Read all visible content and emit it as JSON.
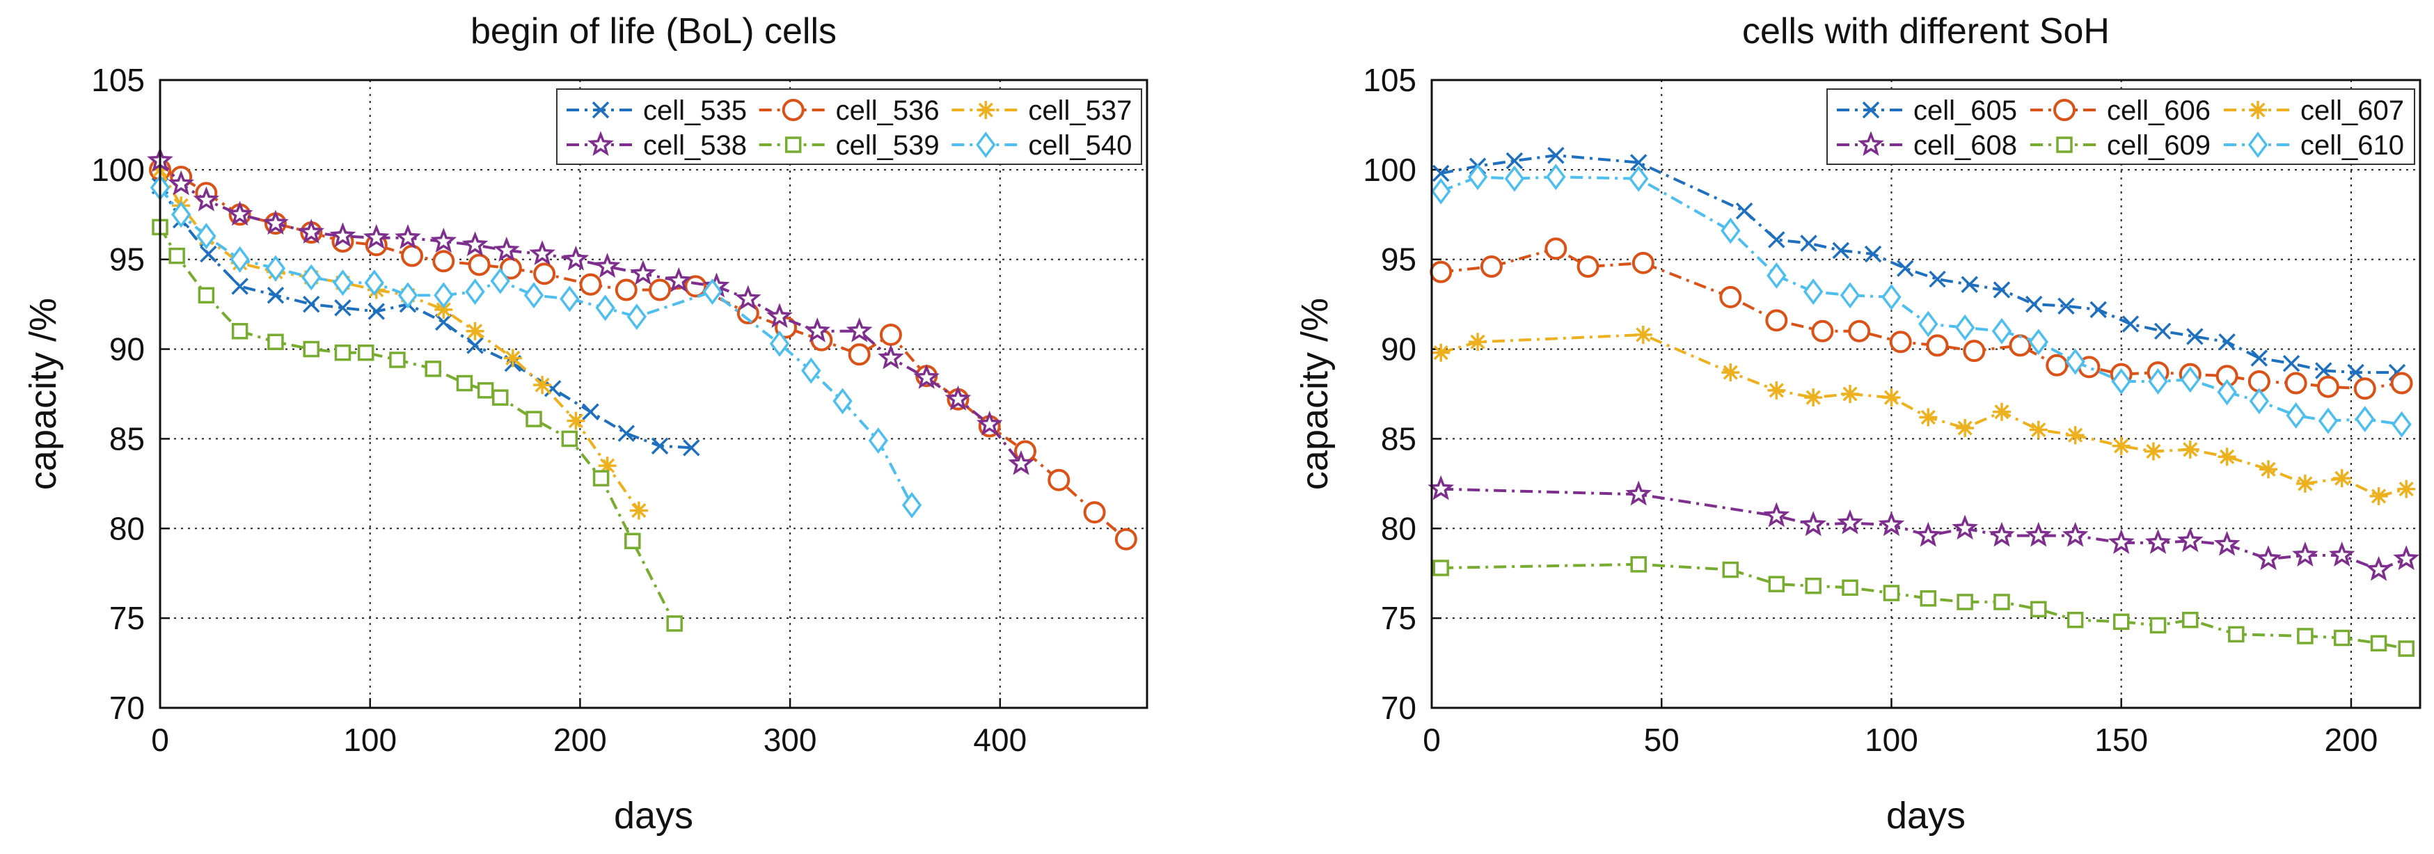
{
  "chart_data": [
    {
      "type": "line",
      "title": "begin of life (BoL) cells",
      "xlabel": "days",
      "ylabel": "capacity /%",
      "xlim": [
        0,
        470
      ],
      "ylim": [
        70,
        105
      ],
      "xticks": [
        0,
        100,
        200,
        300,
        400
      ],
      "yticks": [
        70,
        75,
        80,
        85,
        90,
        95,
        100,
        105
      ],
      "grid": true,
      "legend": "top-right",
      "series": [
        {
          "name": "cell_535",
          "color": "#1f6fbf",
          "marker": "x",
          "x": [
            0,
            10,
            23,
            38,
            55,
            72,
            87,
            103,
            118,
            135,
            150,
            168,
            187,
            205,
            222,
            238,
            253
          ],
          "y": [
            99.1,
            97.2,
            95.3,
            93.5,
            93.0,
            92.5,
            92.3,
            92.1,
            92.5,
            91.5,
            90.2,
            89.2,
            87.8,
            86.5,
            85.3,
            84.6,
            84.5
          ]
        },
        {
          "name": "cell_536",
          "color": "#d95319",
          "marker": "circle",
          "x": [
            0,
            10,
            22,
            38,
            55,
            72,
            87,
            103,
            120,
            135,
            152,
            167,
            183,
            205,
            222,
            238,
            255,
            280,
            298,
            315,
            333,
            348,
            365,
            380,
            395,
            412,
            428,
            445,
            460
          ],
          "y": [
            100.0,
            99.6,
            98.7,
            97.5,
            97.0,
            96.5,
            96.0,
            95.8,
            95.2,
            94.9,
            94.7,
            94.5,
            94.2,
            93.6,
            93.3,
            93.3,
            93.5,
            92.0,
            91.2,
            90.5,
            89.7,
            90.8,
            88.5,
            87.2,
            85.7,
            84.3,
            82.7,
            80.9,
            79.4
          ]
        },
        {
          "name": "cell_537",
          "color": "#edb120",
          "marker": "star",
          "x": [
            0,
            10,
            22,
            38,
            55,
            72,
            87,
            103,
            118,
            135,
            150,
            168,
            182,
            198,
            213,
            228
          ],
          "y": [
            100.0,
            98.0,
            96.2,
            94.8,
            94.3,
            94.0,
            93.7,
            93.3,
            93.0,
            92.2,
            91.0,
            89.5,
            88.0,
            86.0,
            83.5,
            81.0
          ]
        },
        {
          "name": "cell_538",
          "color": "#7e2f8e",
          "marker": "pentagram",
          "x": [
            0,
            10,
            22,
            38,
            55,
            72,
            87,
            103,
            118,
            135,
            150,
            165,
            182,
            198,
            213,
            230,
            247,
            265,
            280,
            295,
            313,
            333,
            348,
            365,
            380,
            395,
            410
          ],
          "y": [
            100.5,
            99.2,
            98.3,
            97.5,
            97.0,
            96.5,
            96.3,
            96.2,
            96.2,
            96.0,
            95.8,
            95.5,
            95.3,
            95.0,
            94.6,
            94.2,
            93.8,
            93.5,
            92.8,
            91.8,
            91.0,
            91.0,
            89.5,
            88.4,
            87.2,
            85.8,
            83.6
          ]
        },
        {
          "name": "cell_539",
          "color": "#77ac30",
          "marker": "square",
          "x": [
            0,
            8,
            22,
            38,
            55,
            72,
            87,
            98,
            113,
            130,
            145,
            155,
            162,
            178,
            195,
            210,
            225,
            245
          ],
          "y": [
            96.8,
            95.2,
            93.0,
            91.0,
            90.4,
            90.0,
            89.8,
            89.8,
            89.4,
            88.9,
            88.1,
            87.7,
            87.3,
            86.1,
            85.0,
            82.8,
            79.3,
            74.7
          ]
        },
        {
          "name": "cell_540",
          "color": "#4dbeee",
          "marker": "diamond",
          "x": [
            0,
            10,
            22,
            38,
            55,
            72,
            87,
            102,
            118,
            135,
            150,
            162,
            178,
            195,
            212,
            227,
            263,
            295,
            310,
            325,
            342,
            358
          ],
          "y": [
            99.0,
            97.5,
            96.3,
            95.0,
            94.5,
            94.0,
            93.7,
            93.7,
            93.0,
            93.0,
            93.2,
            93.8,
            93.0,
            92.8,
            92.3,
            91.8,
            93.2,
            90.3,
            88.8,
            87.1,
            84.9,
            81.3
          ]
        }
      ]
    },
    {
      "type": "line",
      "title": "cells with different SoH",
      "xlabel": "days",
      "ylabel": "capacity /%",
      "xlim": [
        0,
        215
      ],
      "ylim": [
        70,
        105
      ],
      "xticks": [
        0,
        50,
        100,
        150,
        200
      ],
      "yticks": [
        70,
        75,
        80,
        85,
        90,
        95,
        100,
        105
      ],
      "grid": true,
      "legend": "top-right",
      "series": [
        {
          "name": "cell_605",
          "color": "#1f6fbf",
          "marker": "x",
          "x": [
            2,
            10,
            18,
            27,
            45,
            68,
            75,
            82,
            89,
            96,
            103,
            110,
            117,
            124,
            131,
            138,
            145,
            152,
            159,
            166,
            173,
            180,
            187,
            194,
            201,
            210
          ],
          "y": [
            99.8,
            100.2,
            100.5,
            100.8,
            100.4,
            97.7,
            96.1,
            95.9,
            95.5,
            95.3,
            94.5,
            93.9,
            93.6,
            93.3,
            92.5,
            92.4,
            92.2,
            91.4,
            91.0,
            90.7,
            90.4,
            89.5,
            89.2,
            88.8,
            88.7,
            88.7
          ]
        },
        {
          "name": "cell_606",
          "color": "#d95319",
          "marker": "circle",
          "x": [
            2,
            13,
            27,
            34,
            46,
            65,
            75,
            85,
            93,
            102,
            110,
            118,
            128,
            136,
            143,
            150,
            158,
            165,
            173,
            180,
            188,
            195,
            203,
            211
          ],
          "y": [
            94.3,
            94.6,
            95.6,
            94.6,
            94.8,
            92.9,
            91.6,
            91.0,
            91.0,
            90.4,
            90.2,
            89.9,
            90.2,
            89.1,
            89.0,
            88.6,
            88.7,
            88.6,
            88.5,
            88.2,
            88.1,
            87.9,
            87.8,
            88.1
          ]
        },
        {
          "name": "cell_607",
          "color": "#edb120",
          "marker": "star",
          "x": [
            2,
            10,
            46,
            65,
            75,
            83,
            91,
            100,
            108,
            116,
            124,
            132,
            140,
            150,
            157,
            165,
            173,
            182,
            190,
            198,
            206,
            212
          ],
          "y": [
            89.8,
            90.4,
            90.8,
            88.7,
            87.7,
            87.3,
            87.5,
            87.3,
            86.2,
            85.6,
            86.5,
            85.5,
            85.2,
            84.6,
            84.3,
            84.4,
            84.0,
            83.3,
            82.5,
            82.8,
            81.8,
            82.2
          ]
        },
        {
          "name": "cell_608",
          "color": "#7e2f8e",
          "marker": "pentagram",
          "x": [
            2,
            45,
            75,
            83,
            91,
            100,
            108,
            116,
            124,
            132,
            140,
            150,
            158,
            165,
            173,
            182,
            190,
            198,
            206,
            212
          ],
          "y": [
            82.2,
            81.9,
            80.7,
            80.2,
            80.3,
            80.2,
            79.6,
            80.0,
            79.6,
            79.6,
            79.6,
            79.2,
            79.2,
            79.3,
            79.1,
            78.3,
            78.5,
            78.5,
            77.7,
            78.3
          ]
        },
        {
          "name": "cell_609",
          "color": "#77ac30",
          "marker": "square",
          "x": [
            2,
            45,
            65,
            75,
            83,
            91,
            100,
            108,
            116,
            124,
            132,
            140,
            150,
            158,
            165,
            175,
            190,
            198,
            206,
            212
          ],
          "y": [
            77.8,
            78.0,
            77.7,
            76.9,
            76.8,
            76.7,
            76.4,
            76.1,
            75.9,
            75.9,
            75.5,
            74.9,
            74.8,
            74.6,
            74.9,
            74.1,
            74.0,
            73.9,
            73.6,
            73.3
          ]
        },
        {
          "name": "cell_610",
          "color": "#4dbeee",
          "marker": "diamond",
          "x": [
            2,
            10,
            18,
            27,
            45,
            65,
            75,
            83,
            91,
            100,
            108,
            116,
            124,
            132,
            140,
            150,
            158,
            165,
            173,
            180,
            188,
            195,
            203,
            211
          ],
          "y": [
            98.8,
            99.6,
            99.5,
            99.6,
            99.5,
            96.6,
            94.1,
            93.2,
            93.0,
            92.9,
            91.4,
            91.2,
            91.0,
            90.4,
            89.3,
            88.2,
            88.2,
            88.3,
            87.6,
            87.1,
            86.3,
            86.0,
            86.1,
            85.8
          ]
        }
      ]
    }
  ]
}
